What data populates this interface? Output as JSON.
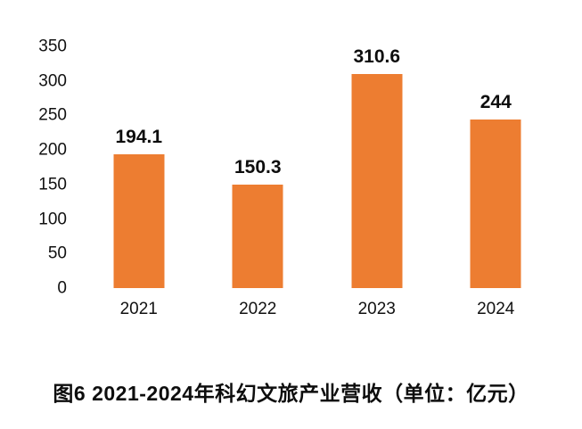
{
  "chart_data": {
    "type": "bar",
    "title": "图6 2021-2024年科幻文旅产业营收（单位：亿元）",
    "categories": [
      "2021",
      "2022",
      "2023",
      "2024"
    ],
    "values": [
      194.1,
      150.3,
      310.6,
      244
    ],
    "xlabel": "",
    "ylabel": "",
    "ylim": [
      0,
      350
    ],
    "yticks": [
      0,
      50,
      100,
      150,
      200,
      250,
      300,
      350
    ],
    "grid": false,
    "legend": false,
    "bar_color": "#ED7D31",
    "text_color": "#111111",
    "value_label_color": "#0D0D0D",
    "background_color": "#FFFFFF"
  }
}
